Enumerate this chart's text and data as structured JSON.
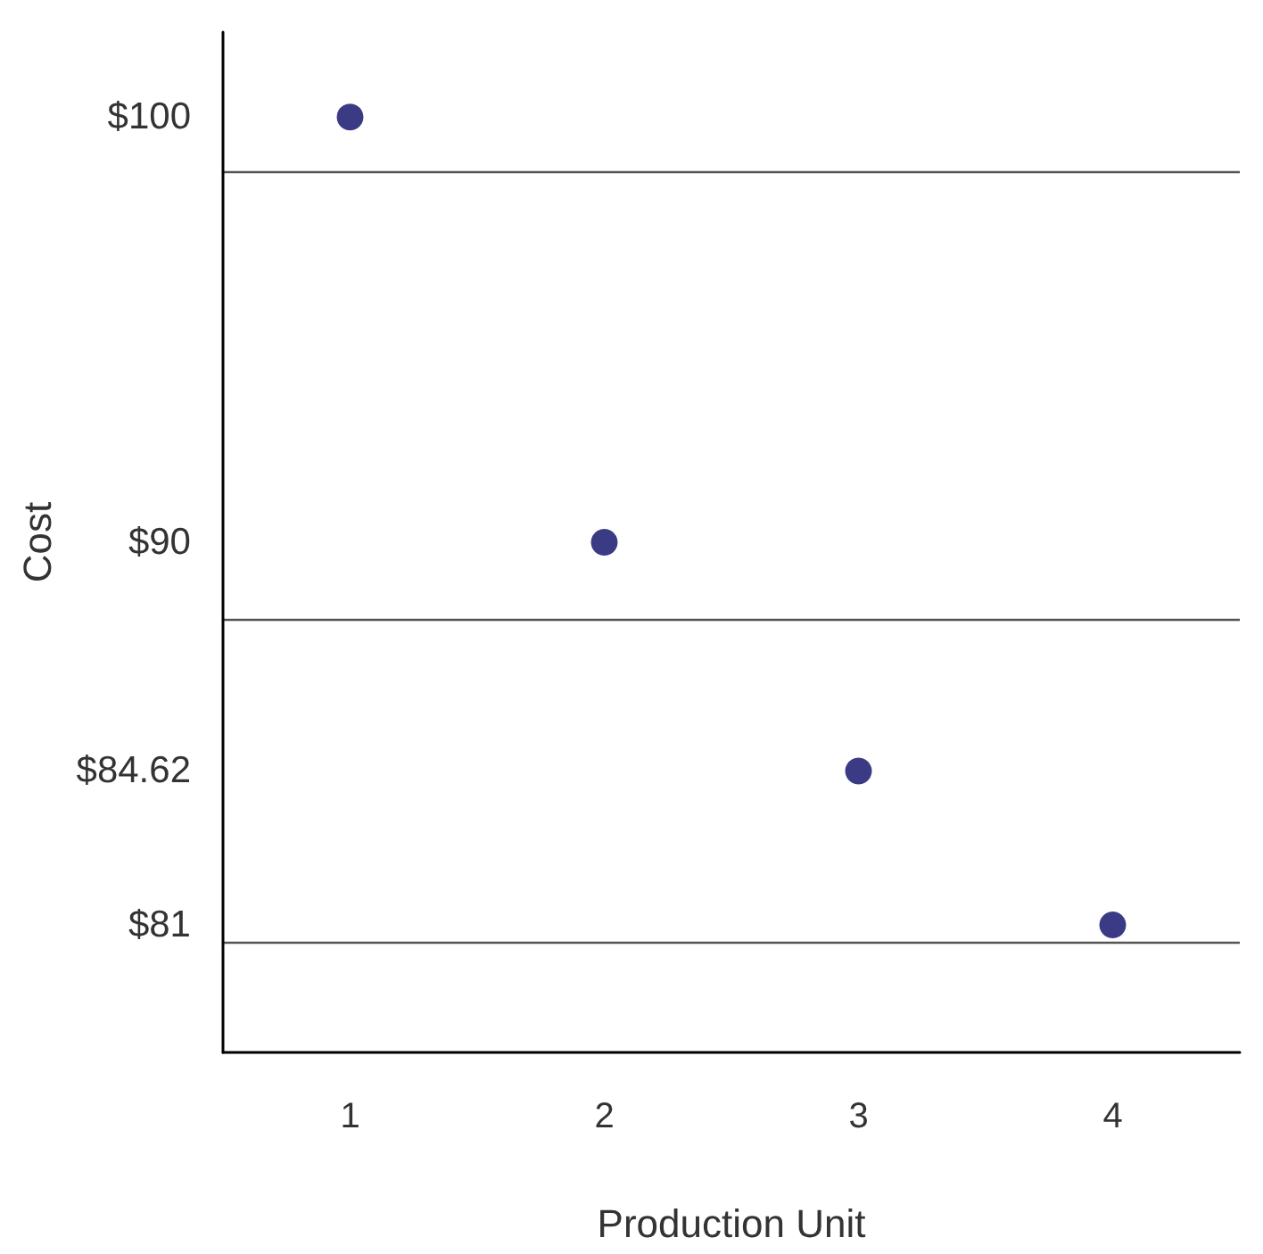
{
  "chart_data": {
    "type": "scatter",
    "xlabel": "Production Unit",
    "ylabel": "Cost",
    "categories": [
      "1",
      "2",
      "3",
      "4"
    ],
    "values": [
      100,
      90,
      84.62,
      81
    ],
    "color": "#0a0a66",
    "marker": "circle",
    "ylim": [
      78,
      102
    ],
    "yticks": [
      {
        "value": 100,
        "label": "$100"
      },
      {
        "value": 90,
        "label": "$90"
      },
      {
        "value": 84.62,
        "label": "$84.62"
      },
      {
        "value": 81,
        "label": "$81"
      },
      {
        "value": 98.7,
        "label": null
      },
      {
        "value": 88.2,
        "label": null
      },
      {
        "value": 80.6,
        "label": null
      }
    ],
    "grid": "y"
  }
}
